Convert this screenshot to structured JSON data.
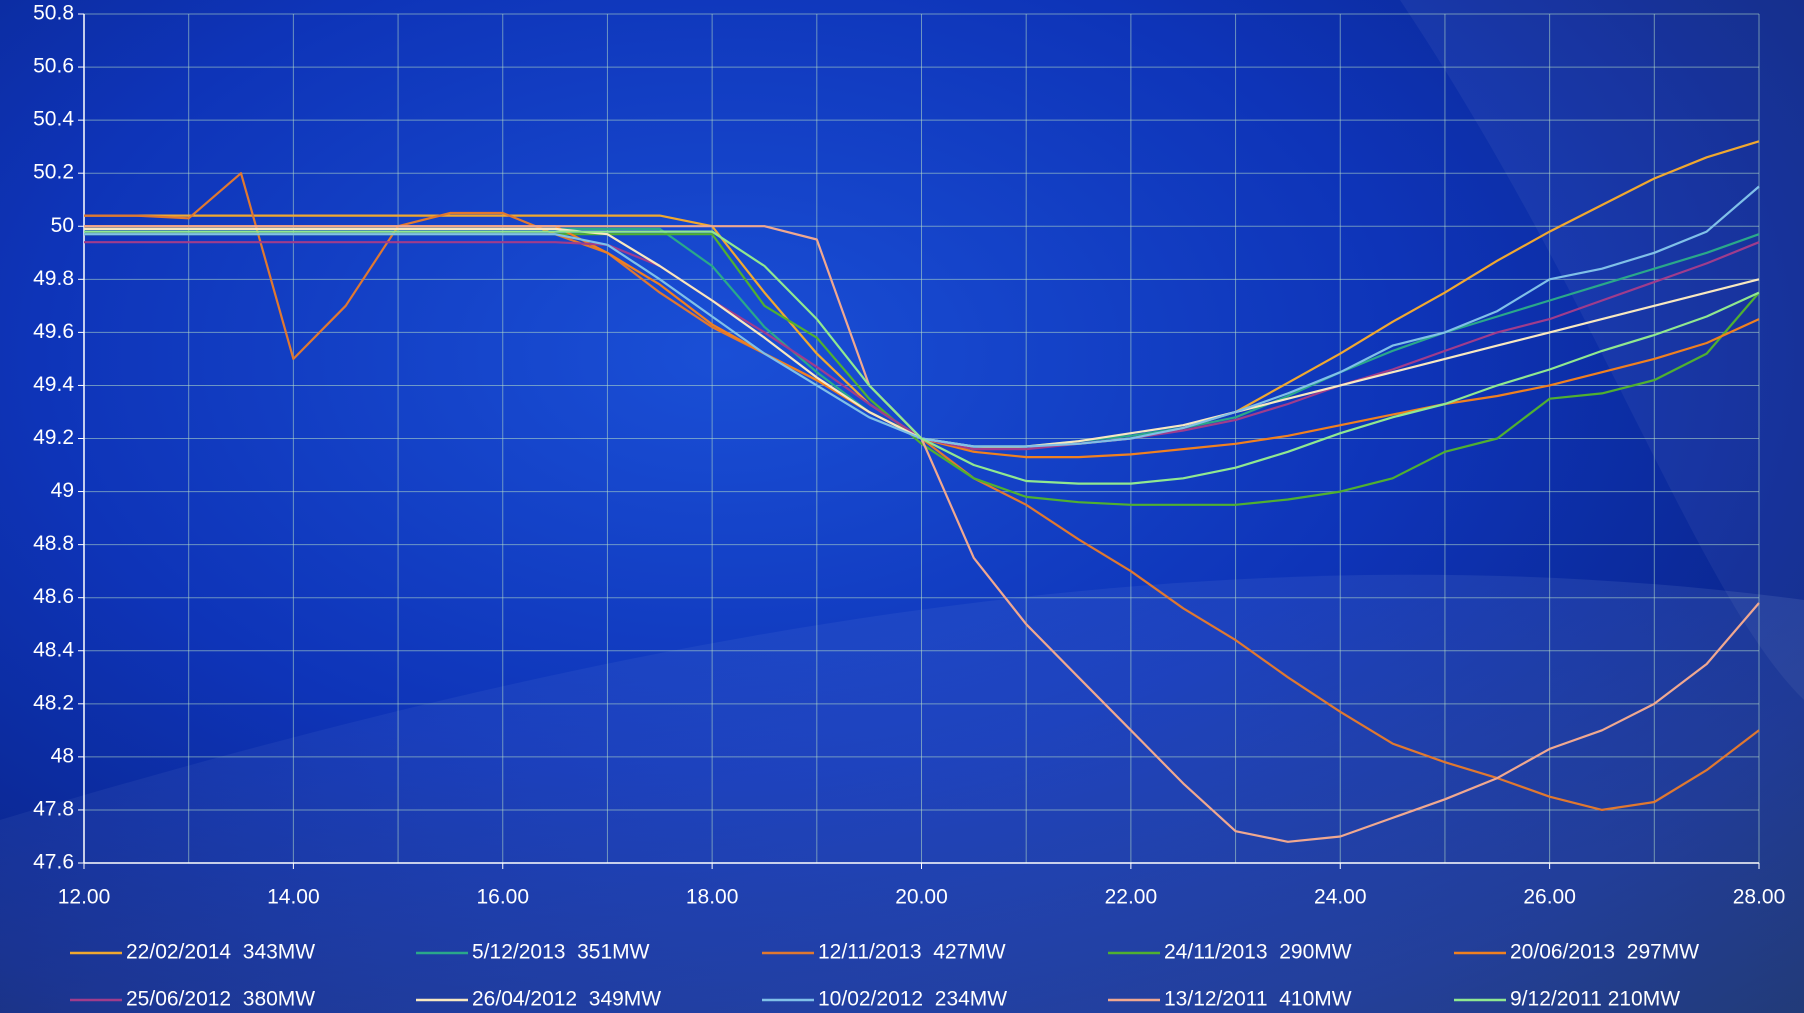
{
  "chart_data": {
    "type": "line",
    "x": [
      12,
      12.5,
      13,
      13.5,
      14,
      14.5,
      15,
      15.5,
      16,
      16.5,
      17,
      17.5,
      18,
      18.5,
      19,
      19.5,
      20,
      20.5,
      21,
      21.5,
      22,
      22.5,
      23,
      23.5,
      24,
      24.5,
      25,
      25.5,
      26,
      26.5,
      27,
      27.5,
      28
    ],
    "xlim": [
      12,
      28
    ],
    "xticks": [
      {
        "value": 12,
        "label": "12.00"
      },
      {
        "value": 14,
        "label": "14.00"
      },
      {
        "value": 16,
        "label": "16.00"
      },
      {
        "value": 18,
        "label": "18.00"
      },
      {
        "value": 20,
        "label": "20.00"
      },
      {
        "value": 22,
        "label": "22.00"
      },
      {
        "value": 24,
        "label": "24.00"
      },
      {
        "value": 26,
        "label": "26.00"
      },
      {
        "value": 28,
        "label": "28.00"
      }
    ],
    "x_minor_ticks": [
      13,
      15,
      17,
      19,
      21,
      23,
      25,
      27
    ],
    "ylim": [
      47.6,
      50.8
    ],
    "yticks": [
      47.6,
      47.8,
      48,
      48.2,
      48.4,
      48.6,
      48.8,
      49,
      49.2,
      49.4,
      49.6,
      49.8,
      50,
      50.2,
      50.4,
      50.6,
      50.8
    ],
    "grid": true,
    "legend": "bottom",
    "series": [
      {
        "name": "22/02/2014  343MW",
        "color": "#f0a830",
        "values": [
          50.04,
          50.04,
          50.04,
          50.04,
          50.04,
          50.04,
          50.04,
          50.04,
          50.04,
          50.04,
          50.04,
          50.04,
          50.0,
          49.75,
          49.52,
          49.33,
          49.2,
          49.16,
          49.17,
          49.18,
          49.2,
          49.24,
          49.3,
          49.41,
          49.52,
          49.64,
          49.75,
          49.87,
          49.98,
          50.08,
          50.18,
          50.26,
          50.32
        ]
      },
      {
        "name": "5/12/2013  351MW",
        "color": "#2aa88a",
        "values": [
          49.99,
          49.99,
          49.99,
          49.99,
          49.99,
          49.99,
          49.99,
          49.99,
          49.99,
          49.99,
          49.99,
          49.99,
          49.85,
          49.62,
          49.45,
          49.3,
          49.2,
          49.17,
          49.17,
          49.19,
          49.21,
          49.24,
          49.28,
          49.36,
          49.45,
          49.53,
          49.6,
          49.66,
          49.72,
          49.78,
          49.84,
          49.9,
          49.97
        ]
      },
      {
        "name": "12/11/2013  427MW",
        "color": "#e07830",
        "values": [
          50.04,
          50.04,
          50.03,
          50.2,
          49.5,
          49.7,
          50.0,
          50.05,
          50.05,
          49.97,
          49.9,
          49.75,
          49.62,
          49.52,
          49.42,
          49.3,
          49.2,
          49.05,
          48.95,
          48.82,
          48.7,
          48.56,
          48.44,
          48.3,
          48.17,
          48.05,
          47.98,
          47.92,
          47.85,
          47.8,
          47.83,
          47.95,
          48.1
        ]
      },
      {
        "name": "24/11/2013  290MW",
        "color": "#50b030",
        "values": [
          49.97,
          49.97,
          49.97,
          49.97,
          49.97,
          49.97,
          49.97,
          49.97,
          49.97,
          49.97,
          49.97,
          49.97,
          49.97,
          49.7,
          49.58,
          49.35,
          49.18,
          49.05,
          48.98,
          48.96,
          48.95,
          48.95,
          48.95,
          48.97,
          49.0,
          49.05,
          49.15,
          49.2,
          49.35,
          49.37,
          49.42,
          49.52,
          49.75
        ]
      },
      {
        "name": "20/06/2013  297MW",
        "color": "#f08020",
        "values": [
          50.0,
          50.0,
          50.0,
          50.0,
          50.0,
          50.0,
          50.0,
          50.0,
          50.0,
          50.0,
          49.9,
          49.78,
          49.63,
          49.52,
          49.42,
          49.3,
          49.2,
          49.15,
          49.13,
          49.13,
          49.14,
          49.16,
          49.18,
          49.21,
          49.25,
          49.29,
          49.33,
          49.36,
          49.4,
          49.45,
          49.5,
          49.56,
          49.65
        ]
      },
      {
        "name": "25/06/2012  380MW",
        "color": "#a03c8c",
        "values": [
          49.94,
          49.94,
          49.94,
          49.94,
          49.94,
          49.94,
          49.94,
          49.94,
          49.94,
          49.94,
          49.93,
          49.85,
          49.72,
          49.6,
          49.47,
          49.33,
          49.2,
          49.16,
          49.16,
          49.18,
          49.2,
          49.23,
          49.27,
          49.33,
          49.4,
          49.46,
          49.53,
          49.6,
          49.65,
          49.72,
          49.79,
          49.86,
          49.94
        ]
      },
      {
        "name": "26/04/2012  349MW",
        "color": "#f8e8c0",
        "values": [
          49.99,
          49.99,
          49.99,
          49.99,
          49.99,
          49.99,
          49.99,
          49.99,
          49.99,
          49.99,
          49.97,
          49.85,
          49.72,
          49.58,
          49.43,
          49.3,
          49.2,
          49.17,
          49.17,
          49.19,
          49.22,
          49.25,
          49.3,
          49.35,
          49.4,
          49.45,
          49.5,
          49.55,
          49.6,
          49.65,
          49.7,
          49.75,
          49.8
        ]
      },
      {
        "name": "10/02/2012  234MW",
        "color": "#80c0e8",
        "values": [
          49.97,
          49.97,
          49.97,
          49.97,
          49.97,
          49.97,
          49.97,
          49.97,
          49.97,
          49.97,
          49.93,
          49.8,
          49.66,
          49.52,
          49.4,
          49.28,
          49.2,
          49.17,
          49.17,
          49.18,
          49.2,
          49.24,
          49.3,
          49.37,
          49.45,
          49.55,
          49.6,
          49.68,
          49.8,
          49.84,
          49.9,
          49.98,
          50.15
        ]
      },
      {
        "name": "13/12/2011  410MW",
        "color": "#f0a890",
        "values": [
          50.0,
          50.0,
          50.0,
          50.0,
          50.0,
          50.0,
          50.0,
          50.0,
          50.0,
          50.0,
          50.0,
          50.0,
          50.0,
          50.0,
          49.95,
          49.4,
          49.2,
          48.75,
          48.5,
          48.3,
          48.1,
          47.9,
          47.72,
          47.68,
          47.7,
          47.77,
          47.84,
          47.92,
          48.03,
          48.1,
          48.2,
          48.35,
          48.58
        ]
      },
      {
        "name": "9/12/2011 210MW",
        "color": "#90e890",
        "values": [
          49.98,
          49.98,
          49.98,
          49.98,
          49.98,
          49.98,
          49.98,
          49.98,
          49.98,
          49.98,
          49.98,
          49.98,
          49.98,
          49.85,
          49.65,
          49.4,
          49.2,
          49.1,
          49.04,
          49.03,
          49.03,
          49.05,
          49.09,
          49.15,
          49.22,
          49.28,
          49.33,
          49.4,
          49.46,
          49.53,
          49.59,
          49.66,
          49.75
        ]
      }
    ]
  }
}
